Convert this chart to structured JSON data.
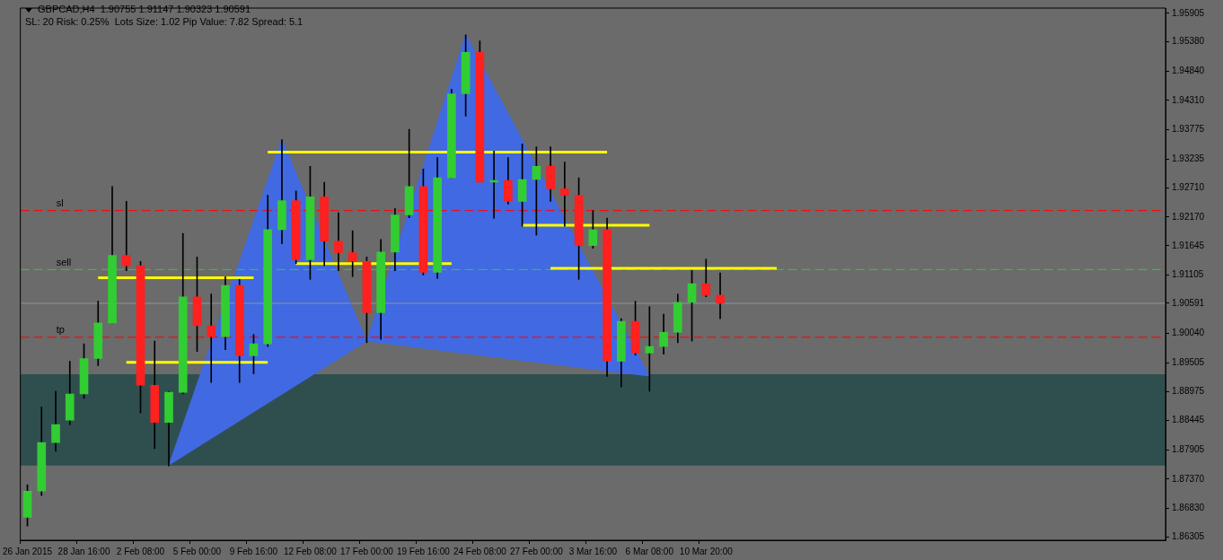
{
  "chart_data": {
    "type": "candlestick",
    "title": "GBPCAD,H4  1.90755 1.91147 1.90323 1.90591",
    "subtitle": "SL: 20 Risk: 0.25%  Lots Size: 1.02 Pip Value: 7.82 Spread: 5.1",
    "categories": [
      "26 Jan 2015",
      null,
      null,
      null,
      "28 Jan 16:00",
      null,
      null,
      null,
      "2 Feb 08:00",
      null,
      null,
      null,
      "5 Feb 00:00",
      null,
      null,
      null,
      "9 Feb 16:00",
      null,
      null,
      null,
      "12 Feb 08:00",
      null,
      null,
      null,
      "17 Feb 00:00",
      null,
      null,
      null,
      "19 Feb 16:00",
      null,
      null,
      null,
      "24 Feb 08:00",
      null,
      null,
      null,
      "27 Feb 00:00",
      null,
      null,
      null,
      "3 Mar 16:00",
      null,
      null,
      null,
      "6 Mar 08:00",
      null,
      null,
      null,
      "10 Mar 20:00",
      null,
      null,
      null,
      null,
      null,
      null,
      null,
      null,
      null,
      null,
      null,
      null,
      null,
      null,
      null,
      null,
      null,
      null,
      null,
      null,
      null,
      null,
      null,
      null,
      null,
      null,
      null,
      null,
      null,
      null,
      null,
      null
    ],
    "ohlc": [
      [
        1.8667,
        1.8727,
        1.8651,
        1.8715
      ],
      [
        1.8715,
        1.8869,
        1.8707,
        1.8804
      ],
      [
        1.8804,
        1.8898,
        1.8788,
        1.8837
      ],
      [
        1.8845,
        1.8953,
        1.8837,
        1.8893
      ],
      [
        1.8893,
        1.8985,
        1.8885,
        1.8958
      ],
      [
        1.8958,
        1.9063,
        1.8945,
        1.9023
      ],
      [
        1.9023,
        1.9273,
        1.9023,
        1.9147
      ],
      [
        1.9147,
        1.9246,
        1.9119,
        1.9128
      ],
      [
        1.9128,
        1.9136,
        1.8858,
        1.8909
      ],
      [
        1.8909,
        1.899,
        1.8793,
        1.8841
      ],
      [
        1.8841,
        1.8898,
        1.8761,
        1.8896
      ],
      [
        1.8896,
        1.9187,
        1.8893,
        1.9071
      ],
      [
        1.9071,
        1.9144,
        1.8971,
        1.9018
      ],
      [
        1.9018,
        1.9076,
        1.8914,
        1.8998
      ],
      [
        1.8998,
        1.9108,
        1.8974,
        1.9092
      ],
      [
        1.9092,
        1.9103,
        1.8914,
        1.8963
      ],
      [
        1.8963,
        1.9002,
        1.893,
        1.8985
      ],
      [
        1.8985,
        1.9257,
        1.898,
        1.9194
      ],
      [
        1.9194,
        1.9359,
        1.9168,
        1.9247
      ],
      [
        1.9247,
        1.9265,
        1.9132,
        1.9139
      ],
      [
        1.9139,
        1.931,
        1.9103,
        1.9254
      ],
      [
        1.9254,
        1.9281,
        1.9128,
        1.9173
      ],
      [
        1.9173,
        1.9225,
        1.9119,
        1.9152
      ],
      [
        1.9152,
        1.9192,
        1.9108,
        1.9136
      ],
      [
        1.9136,
        1.9144,
        1.8987,
        1.9042
      ],
      [
        1.9042,
        1.9176,
        1.8993,
        1.9153
      ],
      [
        1.9153,
        1.9233,
        1.9119,
        1.9221
      ],
      [
        1.9221,
        1.9378,
        1.9216,
        1.9273
      ],
      [
        1.9273,
        1.9305,
        1.9111,
        1.9116
      ],
      [
        1.9116,
        1.9326,
        1.9105,
        1.9289
      ],
      [
        1.9289,
        1.9451,
        1.9289,
        1.9443
      ],
      [
        1.9443,
        1.9551,
        1.9402,
        1.9519
      ],
      [
        1.9519,
        1.954,
        1.9281,
        1.9281
      ],
      [
        1.9281,
        1.9338,
        1.9215,
        1.9284
      ],
      [
        1.9284,
        1.9326,
        1.9241,
        1.9246
      ],
      [
        1.9246,
        1.9351,
        1.92,
        1.9286
      ],
      [
        1.9286,
        1.9346,
        1.9184,
        1.931
      ],
      [
        1.931,
        1.9346,
        1.9246,
        1.9269
      ],
      [
        1.9269,
        1.9318,
        1.92,
        1.9257
      ],
      [
        1.9257,
        1.9289,
        1.9103,
        1.9165
      ],
      [
        1.9165,
        1.9229,
        1.916,
        1.9194
      ],
      [
        1.9194,
        1.9215,
        1.8925,
        1.8953
      ],
      [
        1.8953,
        1.9031,
        1.8906,
        1.9026
      ],
      [
        1.9026,
        1.9063,
        1.8964,
        1.8968
      ],
      [
        1.8968,
        1.9053,
        1.8898,
        1.898
      ],
      [
        1.898,
        1.9039,
        1.8966,
        1.9006
      ],
      [
        1.9006,
        1.9076,
        1.8987,
        1.9061
      ],
      [
        1.9061,
        1.9119,
        1.899,
        1.9095
      ],
      [
        1.9095,
        1.914,
        1.9071,
        1.9074
      ],
      [
        1.9074,
        1.9115,
        1.9031,
        1.9059
      ],
      null,
      null,
      null,
      null,
      null,
      null,
      null,
      null,
      null,
      null,
      null,
      null,
      null,
      null,
      null,
      null,
      null,
      null,
      null,
      null,
      null,
      null,
      null,
      null,
      null,
      null,
      null,
      null,
      null,
      null,
      null
    ],
    "series": [
      {
        "type": "line",
        "color": "#ffff00",
        "values": [
          null,
          null,
          null,
          null,
          null,
          null,
          null,
          null,
          null,
          null,
          null,
          null,
          null,
          null,
          null,
          null,
          null,
          1.9336,
          null,
          null,
          null,
          null,
          null,
          null,
          null,
          null,
          null,
          null,
          null,
          null,
          null,
          null,
          null,
          null,
          null,
          null,
          null,
          null,
          null,
          null,
          null,
          1.9336,
          null,
          null,
          null,
          null,
          null,
          null,
          null,
          null,
          null,
          null,
          null,
          null,
          null,
          null,
          null,
          null,
          null,
          null,
          null,
          null,
          null,
          null,
          null,
          null,
          null,
          null,
          null,
          null,
          null,
          null,
          null,
          null,
          null,
          null,
          null,
          null,
          null,
          null,
          null
        ]
      },
      {
        "type": "line",
        "color": "#ffff00",
        "values": [
          null,
          null,
          null,
          null,
          null,
          1.9106,
          null,
          null,
          null,
          null,
          null,
          null,
          null,
          null,
          null,
          null,
          1.9106,
          null,
          null,
          null,
          null,
          null,
          null,
          null,
          null,
          null,
          null,
          null,
          null,
          null,
          null,
          null,
          null,
          null,
          null,
          null,
          null,
          null,
          null,
          null,
          null,
          null,
          null,
          null,
          null,
          null,
          null,
          null,
          null,
          null,
          null,
          null,
          null,
          null,
          null,
          null,
          null,
          null,
          null,
          null,
          null,
          null,
          null,
          null,
          null,
          null,
          null,
          null,
          null,
          null,
          null,
          null,
          null,
          null,
          null,
          null,
          null,
          null,
          null,
          null,
          null
        ]
      },
      {
        "type": "line",
        "color": "#ffff00",
        "values": [
          null,
          null,
          null,
          null,
          null,
          null,
          null,
          1.8951,
          null,
          null,
          null,
          null,
          null,
          null,
          null,
          null,
          null,
          1.8951,
          null,
          null,
          null,
          null,
          null,
          null,
          null,
          null,
          null,
          null,
          null,
          null,
          null,
          null,
          null,
          null,
          null,
          null,
          null,
          null,
          null,
          null,
          null,
          null,
          null,
          null,
          null,
          null,
          null,
          null,
          null,
          null,
          null,
          null,
          null,
          null,
          null,
          null,
          null,
          null,
          null,
          null,
          null,
          null,
          null,
          null,
          null,
          null,
          null,
          null,
          null,
          null,
          null,
          null,
          null,
          null,
          null,
          null,
          null,
          null,
          null,
          null,
          null
        ]
      },
      {
        "type": "line",
        "color": "#ffff00",
        "values": [
          null,
          null,
          null,
          null,
          null,
          null,
          null,
          null,
          null,
          null,
          null,
          null,
          null,
          null,
          null,
          null,
          null,
          null,
          null,
          1.9132,
          null,
          null,
          null,
          null,
          null,
          null,
          null,
          null,
          null,
          null,
          1.9132,
          null,
          null,
          null,
          null,
          null,
          null,
          null,
          null,
          null,
          null,
          null,
          null,
          null,
          null,
          null,
          null,
          null,
          null,
          null,
          null,
          null,
          null,
          null,
          null,
          null,
          null,
          null,
          null,
          null,
          null,
          null,
          null,
          null,
          null,
          null,
          null,
          null,
          null,
          null,
          null,
          null,
          null,
          null,
          null,
          null,
          null,
          null,
          null,
          null,
          null
        ]
      },
      {
        "type": "line",
        "color": "#ffff00",
        "values": [
          null,
          null,
          null,
          null,
          null,
          null,
          null,
          null,
          null,
          null,
          null,
          null,
          null,
          null,
          null,
          null,
          null,
          null,
          null,
          null,
          null,
          null,
          null,
          null,
          null,
          null,
          null,
          null,
          null,
          null,
          null,
          null,
          null,
          null,
          null,
          1.9202,
          null,
          null,
          null,
          null,
          null,
          null,
          null,
          null,
          1.9202,
          null,
          null,
          null,
          null,
          null,
          null,
          null,
          null,
          null,
          null,
          null,
          null,
          null,
          null,
          null,
          null,
          null,
          null,
          null,
          null,
          null,
          null,
          null,
          null,
          null,
          null,
          null,
          null,
          null,
          null,
          null,
          null,
          null,
          null,
          null,
          null
        ]
      },
      {
        "type": "line",
        "color": "#ffff00",
        "values": [
          null,
          null,
          null,
          null,
          null,
          null,
          null,
          null,
          null,
          null,
          null,
          null,
          null,
          null,
          null,
          null,
          null,
          null,
          null,
          null,
          null,
          null,
          null,
          null,
          null,
          null,
          null,
          null,
          null,
          null,
          null,
          null,
          null,
          null,
          null,
          null,
          null,
          1.9123,
          null,
          null,
          null,
          null,
          null,
          null,
          null,
          null,
          null,
          null,
          null,
          null,
          null,
          null,
          null,
          1.9123,
          null,
          null,
          null,
          null,
          null,
          null,
          null,
          null,
          null,
          null,
          null,
          null,
          null,
          null,
          null,
          null,
          null,
          null,
          null,
          null,
          null,
          null,
          null,
          null,
          null,
          null,
          null
        ]
      },
      {
        "type": "area",
        "color": "#4169e1",
        "values": [
          null,
          null,
          null,
          null,
          null,
          null,
          null,
          null,
          null,
          null,
          1.8762,
          null,
          null,
          null,
          null,
          null,
          null,
          null,
          1.9359,
          null,
          null,
          null,
          null,
          null,
          1.8989,
          null,
          null,
          null,
          null,
          null,
          null,
          null,
          null,
          null,
          null,
          null,
          null,
          null,
          null,
          null,
          null,
          null,
          null,
          null,
          null,
          null,
          null,
          null,
          null,
          null,
          null,
          null,
          null,
          null,
          null,
          null,
          null,
          null,
          null,
          null,
          null,
          null,
          null,
          null,
          null,
          null,
          null,
          null,
          null,
          null,
          null,
          null,
          null,
          null,
          null,
          null,
          null,
          null,
          null,
          null,
          null
        ]
      },
      {
        "type": "area",
        "color": "#4169e1",
        "values": [
          null,
          null,
          null,
          null,
          null,
          null,
          null,
          null,
          null,
          null,
          null,
          null,
          null,
          null,
          null,
          null,
          null,
          null,
          null,
          null,
          null,
          null,
          null,
          null,
          1.8989,
          null,
          null,
          null,
          null,
          null,
          null,
          1.9551,
          null,
          null,
          null,
          null,
          null,
          null,
          null,
          null,
          null,
          null,
          null,
          null,
          1.8925,
          null,
          null,
          null,
          null,
          null,
          null,
          null,
          null,
          null,
          null,
          null,
          null,
          null,
          null,
          null,
          null,
          null,
          null,
          null,
          null,
          null,
          null,
          null,
          null,
          null,
          null,
          null,
          null,
          null,
          null,
          null,
          null,
          null,
          null,
          null,
          null
        ]
      }
    ],
    "ylim": [
      1.8625,
      1.96
    ],
    "yticks": [
      1.95905,
      {
        "value": 1.9538,
        "label": "1.95380"
      },
      {
        "value": 1.9484,
        "label": "1.94840"
      },
      {
        "value": 1.9431,
        "label": "1.94310"
      },
      1.93775,
      1.93235,
      {
        "value": 1.9271,
        "label": "1.92710"
      },
      {
        "value": 1.9217,
        "label": "1.92170"
      },
      1.91645,
      1.91105,
      1.90591,
      {
        "value": 1.9004,
        "label": "1.90040"
      },
      1.89505,
      1.88975,
      1.88445,
      1.87905,
      {
        "value": 1.8737,
        "label": "1.87370"
      },
      {
        "value": 1.8683,
        "label": "1.86830"
      },
      1.86305
    ],
    "ref_lines": [
      {
        "axis": "y",
        "value": 1.9229,
        "label": "sl",
        "color": "#ff0000",
        "line_style": "dashed"
      },
      {
        "axis": "y",
        "value": 1.9121,
        "label": "sell",
        "color": "#32cd32",
        "line_style": "dashed"
      },
      {
        "axis": "y",
        "value": 1.8997,
        "label": "tp",
        "color": "#ff0000",
        "line_style": "dashed"
      },
      {
        "axis": "y",
        "value": 1.90591,
        "color": "#8899aa",
        "line_style": "solid"
      }
    ],
    "bands": [
      {
        "axis": "y",
        "from": 1.8762,
        "to": 1.8929,
        "color": "#2f4f4f"
      }
    ],
    "legend": false
  }
}
